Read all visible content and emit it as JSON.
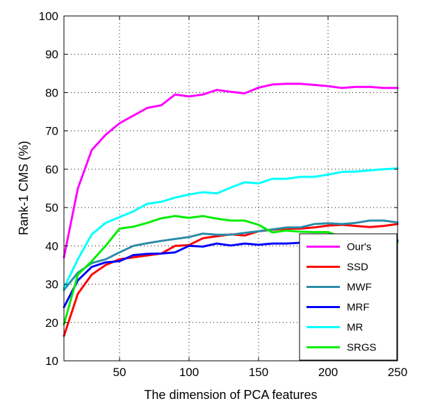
{
  "chart_data": {
    "type": "line",
    "xlabel": "The dimension of PCA features",
    "ylabel": "Rank-1 CMS (%)",
    "xlim": [
      10,
      250
    ],
    "ylim": [
      10,
      100
    ],
    "xticks": [
      50,
      100,
      150,
      200,
      250
    ],
    "yticks": [
      10,
      20,
      30,
      40,
      50,
      60,
      70,
      80,
      90,
      100
    ],
    "grid": true,
    "grid_style": "dotted",
    "legend_position": "lower-right",
    "x": [
      10,
      20,
      30,
      40,
      50,
      60,
      70,
      80,
      90,
      100,
      110,
      120,
      130,
      140,
      150,
      160,
      170,
      180,
      190,
      200,
      210,
      220,
      230,
      240,
      250
    ],
    "series": [
      {
        "name": "Our's",
        "color": "#ff00ff",
        "values": [
          37,
          55,
          65,
          69,
          72,
          74,
          76,
          76.7,
          79.5,
          79,
          79.5,
          80.7,
          80.2,
          79.8,
          81.3,
          82.1,
          82.3,
          82.3,
          82,
          81.7,
          81.2,
          81.5,
          81.5,
          81.2,
          81.2
        ]
      },
      {
        "name": "SSD",
        "color": "#ff0000",
        "values": [
          16.5,
          27.5,
          32.5,
          35,
          36.5,
          37,
          37.5,
          38,
          40,
          40.2,
          42,
          42.5,
          43,
          42.7,
          43.8,
          44.2,
          44.5,
          44.5,
          44.8,
          45.3,
          45.5,
          45.2,
          44.9,
          45.2,
          45.7
        ]
      },
      {
        "name": "MWF",
        "color": "#2a8ca8",
        "values": [
          28.5,
          33,
          35.5,
          36.5,
          38.3,
          40,
          40.7,
          41.3,
          41.8,
          42.3,
          43.2,
          42.9,
          42.9,
          43.4,
          43.8,
          44.3,
          44.8,
          44.8,
          45.7,
          45.9,
          45.7,
          46,
          46.6,
          46.6,
          46.1
        ]
      },
      {
        "name": "MRF",
        "color": "#0000ff",
        "values": [
          24,
          31,
          34.5,
          35.7,
          36,
          37.6,
          37.9,
          38,
          38.3,
          40,
          39.8,
          40.6,
          40.1,
          40.6,
          40.3,
          40.6,
          40.6,
          40.8,
          41.4,
          41.2,
          41.1,
          41.5,
          41.4,
          41.4,
          41.4
        ]
      },
      {
        "name": "MR",
        "color": "#00ffff",
        "values": [
          29,
          36.5,
          43,
          46,
          47.5,
          49,
          51,
          51.5,
          52.6,
          53.4,
          54,
          53.7,
          55.2,
          56.6,
          56.3,
          57.5,
          57.5,
          58,
          58,
          58.6,
          59.3,
          59.4,
          59.7,
          60,
          60.2
        ]
      },
      {
        "name": "SRGS",
        "color": "#00ee00",
        "values": [
          19.5,
          32.5,
          36,
          40,
          44.5,
          45,
          46,
          47.2,
          47.8,
          47.3,
          47.8,
          47.1,
          46.6,
          46.6,
          45.5,
          43.5,
          44,
          43.7,
          43.6,
          43.6,
          42.3,
          41.7,
          41.3,
          41,
          40.9
        ]
      }
    ]
  }
}
